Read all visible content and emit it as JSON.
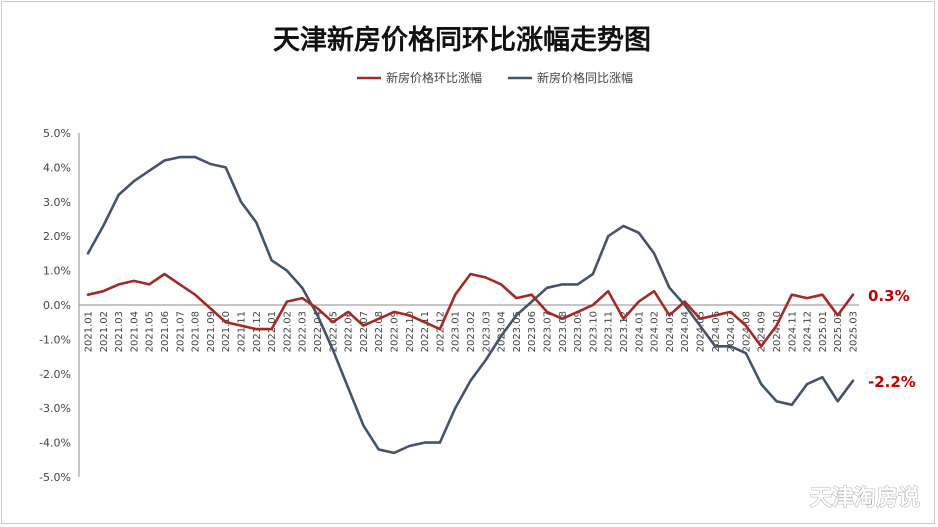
{
  "chart_data": {
    "type": "line",
    "title": "天津新房价格同环比涨幅走势图",
    "ylim": [
      -5.0,
      5.0
    ],
    "y_ticks": [
      "5.0%",
      "4.0%",
      "3.0%",
      "2.0%",
      "1.0%",
      "0.0%",
      "-1.0%",
      "-2.0%",
      "-3.0%",
      "-4.0%",
      "-5.0%"
    ],
    "y_tick_values": [
      5,
      4,
      3,
      2,
      1,
      0,
      -1,
      -2,
      -3,
      -4,
      -5
    ],
    "legend_position": "top-center",
    "grid": false,
    "x": [
      "2021.01",
      "2021.02",
      "2021.03",
      "2021.04",
      "2021.05",
      "2021.06",
      "2021.07",
      "2021.08",
      "2021.09",
      "2021.10",
      "2021.11",
      "2021.12",
      "2022.01",
      "2022.02",
      "2022.03",
      "2022.04",
      "2022.05",
      "2022.06",
      "2022.07",
      "2022.08",
      "2022.09",
      "2022.10",
      "2022.11",
      "2022.12",
      "2023.01",
      "2023.02",
      "2023.03",
      "2023.04",
      "2023.05",
      "2023.06",
      "2023.07",
      "2023.08",
      "2023.09",
      "2023.10",
      "2023.11",
      "2023.12",
      "2024.01",
      "2024.02",
      "2024.03",
      "2024.04",
      "2024.05",
      "2024.06",
      "2024.07",
      "2024.08",
      "2024.09",
      "2024.10",
      "2024.11",
      "2024.12",
      "2025.01",
      "2025.02",
      "2025.03"
    ],
    "series": [
      {
        "name": "新房价格环比涨幅",
        "color": "#a52a24",
        "values": [
          0.3,
          0.4,
          0.6,
          0.7,
          0.6,
          0.9,
          0.6,
          0.3,
          -0.1,
          -0.5,
          -0.6,
          -0.7,
          -0.7,
          0.1,
          0.2,
          -0.1,
          -0.5,
          -0.2,
          -0.6,
          -0.4,
          -0.2,
          -0.3,
          -0.5,
          -0.7,
          0.3,
          0.9,
          0.8,
          0.6,
          0.2,
          0.3,
          -0.2,
          -0.4,
          -0.2,
          0.0,
          0.4,
          -0.4,
          0.1,
          0.4,
          -0.3,
          0.1,
          -0.4,
          -0.3,
          -0.2,
          -0.6,
          -1.2,
          -0.6,
          0.3,
          0.2,
          0.3,
          -0.3,
          0.3
        ]
      },
      {
        "name": "新房价格同比涨幅",
        "color": "#44546a",
        "values": [
          1.5,
          2.3,
          3.2,
          3.6,
          3.9,
          4.2,
          4.3,
          4.3,
          4.1,
          4.0,
          3.0,
          2.4,
          1.3,
          1.0,
          0.5,
          -0.3,
          -1.3,
          -2.4,
          -3.5,
          -4.2,
          -4.3,
          -4.1,
          -4.0,
          -4.0,
          -3.0,
          -2.2,
          -1.6,
          -0.9,
          -0.3,
          0.1,
          0.5,
          0.6,
          0.6,
          0.9,
          2.0,
          2.3,
          2.1,
          1.5,
          0.5,
          0.0,
          -0.6,
          -1.2,
          -1.2,
          -1.4,
          -2.3,
          -2.8,
          -2.9,
          -2.3,
          -2.1,
          -2.8,
          -2.2
        ]
      }
    ],
    "end_labels": [
      "0.3%",
      "-2.2%"
    ]
  },
  "watermark": "天津淘房说"
}
